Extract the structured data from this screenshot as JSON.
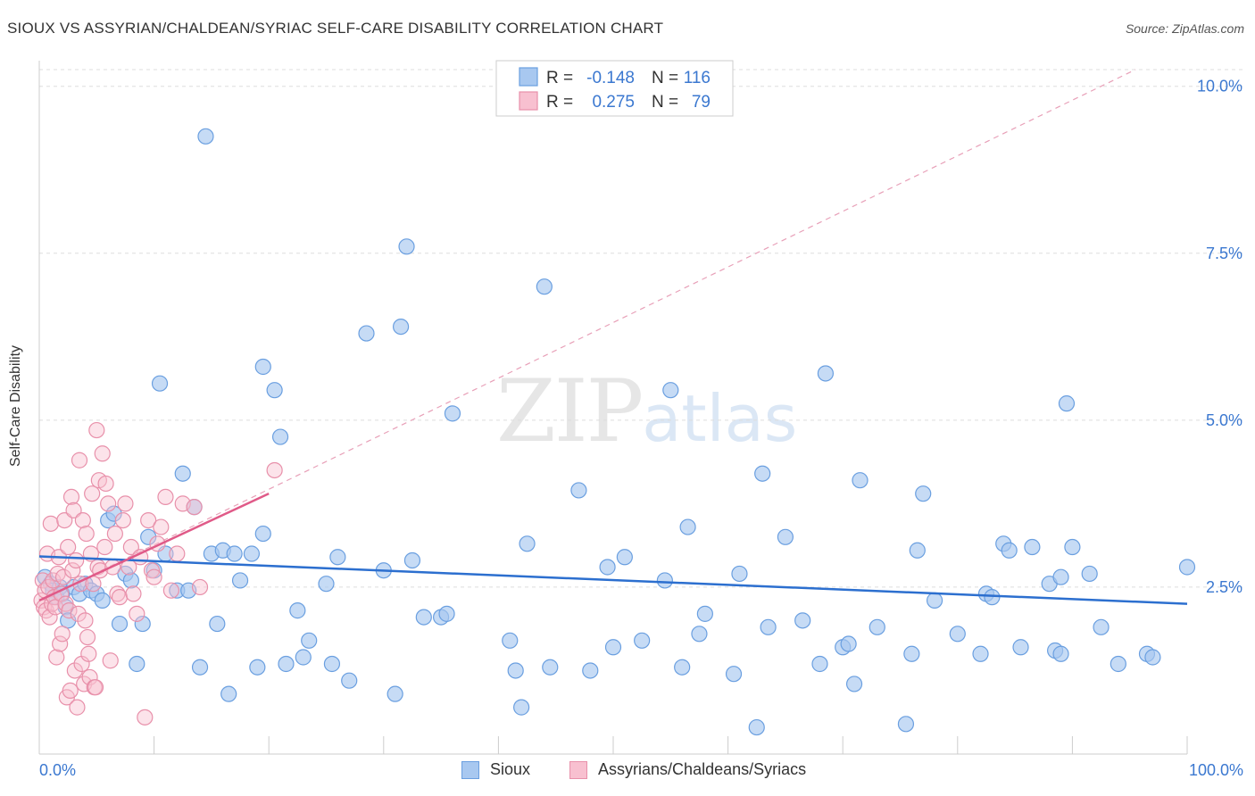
{
  "title": "SIOUX VS ASSYRIAN/CHALDEAN/SYRIAC SELF-CARE DISABILITY CORRELATION CHART",
  "source": "Source: ZipAtlas.com",
  "watermark": {
    "zip": "ZIP",
    "atlas": "atlas"
  },
  "colors": {
    "sioux_fill": "#a8c8f0",
    "sioux_stroke": "#6a9fe0",
    "sioux_line": "#2c6fcf",
    "assyr_fill": "#f8c0d0",
    "assyr_stroke": "#e890aa",
    "assyr_line": "#e05a88",
    "axis_text": "#3b78d0",
    "grid": "#dddddd"
  },
  "legend_top": {
    "rows": [
      {
        "r_label": "R =",
        "r_value": "-0.148",
        "n_label": "N =",
        "n_value": "116"
      },
      {
        "r_label": "R =",
        "r_value": "0.275",
        "n_label": "N =",
        "n_value": "79"
      }
    ]
  },
  "legend_bottom": [
    {
      "label": "Sioux"
    },
    {
      "label": "Assyrians/Chaldeans/Syriacs"
    }
  ],
  "chart_data": {
    "type": "scatter",
    "title": "SIOUX VS ASSYRIAN/CHALDEAN/SYRIAC SELF-CARE DISABILITY CORRELATION CHART",
    "xlabel": "",
    "ylabel": "Self-Care Disability",
    "xlim": [
      0,
      100
    ],
    "ylim": [
      0,
      10.25
    ],
    "x_tick_labels": [
      "0.0%",
      "100.0%"
    ],
    "y_ticks": [
      2.5,
      5.0,
      7.5,
      10.0
    ],
    "y_tick_labels": [
      "2.5%",
      "5.0%",
      "7.5%",
      "10.0%"
    ],
    "grid": true,
    "legend_placement": "top-center",
    "series": [
      {
        "name": "Sioux",
        "R": -0.148,
        "N": 116,
        "trend": {
          "x": [
            0,
            100
          ],
          "y": [
            2.96,
            2.25
          ]
        },
        "points": [
          [
            0.5,
            2.65
          ],
          [
            1.0,
            2.55
          ],
          [
            1.2,
            2.45
          ],
          [
            1.5,
            2.35
          ],
          [
            1.8,
            2.5
          ],
          [
            2.0,
            2.4
          ],
          [
            2.3,
            2.2
          ],
          [
            2.5,
            2.0
          ],
          [
            3.0,
            2.5
          ],
          [
            3.5,
            2.4
          ],
          [
            4.0,
            2.55
          ],
          [
            4.5,
            2.45
          ],
          [
            5.0,
            2.4
          ],
          [
            5.5,
            2.3
          ],
          [
            6.0,
            3.5
          ],
          [
            6.5,
            3.6
          ],
          [
            7.0,
            1.95
          ],
          [
            7.5,
            2.7
          ],
          [
            8.0,
            2.6
          ],
          [
            8.5,
            1.35
          ],
          [
            9.0,
            1.95
          ],
          [
            9.5,
            3.25
          ],
          [
            10.0,
            2.75
          ],
          [
            10.5,
            5.55
          ],
          [
            11.0,
            3.0
          ],
          [
            12.0,
            2.45
          ],
          [
            12.5,
            4.2
          ],
          [
            13.0,
            2.45
          ],
          [
            13.5,
            3.7
          ],
          [
            14.0,
            1.3
          ],
          [
            14.5,
            9.25
          ],
          [
            15.0,
            3.0
          ],
          [
            15.5,
            1.95
          ],
          [
            16.0,
            3.05
          ],
          [
            16.5,
            0.9
          ],
          [
            17.0,
            3.0
          ],
          [
            17.5,
            2.6
          ],
          [
            18.5,
            3.0
          ],
          [
            19.0,
            1.3
          ],
          [
            19.5,
            3.3
          ],
          [
            19.5,
            5.8
          ],
          [
            20.5,
            5.45
          ],
          [
            21.0,
            4.75
          ],
          [
            21.5,
            1.35
          ],
          [
            22.5,
            2.15
          ],
          [
            23.0,
            1.45
          ],
          [
            23.5,
            1.7
          ],
          [
            25.0,
            2.55
          ],
          [
            25.5,
            1.35
          ],
          [
            26.0,
            2.95
          ],
          [
            27.0,
            1.1
          ],
          [
            28.5,
            6.3
          ],
          [
            30.0,
            2.75
          ],
          [
            31.0,
            0.9
          ],
          [
            31.5,
            6.4
          ],
          [
            32.0,
            7.6
          ],
          [
            32.5,
            2.9
          ],
          [
            33.5,
            2.05
          ],
          [
            35.0,
            2.05
          ],
          [
            35.5,
            2.1
          ],
          [
            36.0,
            5.1
          ],
          [
            41.0,
            1.7
          ],
          [
            41.5,
            1.25
          ],
          [
            42.0,
            0.7
          ],
          [
            42.5,
            3.15
          ],
          [
            44.0,
            7.0
          ],
          [
            44.5,
            1.3
          ],
          [
            47.0,
            3.95
          ],
          [
            48.0,
            1.25
          ],
          [
            49.5,
            2.8
          ],
          [
            50.0,
            1.6
          ],
          [
            51.0,
            2.95
          ],
          [
            52.5,
            1.7
          ],
          [
            54.5,
            2.6
          ],
          [
            55.0,
            5.45
          ],
          [
            56.0,
            1.3
          ],
          [
            56.5,
            3.4
          ],
          [
            57.5,
            1.8
          ],
          [
            58.0,
            2.1
          ],
          [
            60.5,
            1.2
          ],
          [
            61.0,
            2.7
          ],
          [
            62.5,
            0.4
          ],
          [
            63.0,
            4.2
          ],
          [
            63.5,
            1.9
          ],
          [
            65.0,
            3.25
          ],
          [
            66.5,
            2.0
          ],
          [
            68.0,
            1.35
          ],
          [
            68.5,
            5.7
          ],
          [
            70.0,
            1.6
          ],
          [
            70.5,
            1.65
          ],
          [
            71.0,
            1.05
          ],
          [
            71.5,
            4.1
          ],
          [
            73.0,
            1.9
          ],
          [
            75.5,
            0.45
          ],
          [
            76.0,
            1.5
          ],
          [
            76.5,
            3.05
          ],
          [
            77.0,
            3.9
          ],
          [
            78.0,
            2.3
          ],
          [
            80.0,
            1.8
          ],
          [
            82.0,
            1.5
          ],
          [
            82.5,
            2.4
          ],
          [
            83.0,
            2.35
          ],
          [
            84.0,
            3.15
          ],
          [
            84.5,
            3.05
          ],
          [
            85.5,
            1.6
          ],
          [
            86.5,
            3.1
          ],
          [
            88.0,
            2.55
          ],
          [
            88.5,
            1.55
          ],
          [
            89.0,
            1.5
          ],
          [
            89.0,
            2.65
          ],
          [
            89.5,
            5.25
          ],
          [
            90.0,
            3.1
          ],
          [
            91.5,
            2.7
          ],
          [
            92.5,
            1.9
          ],
          [
            94.0,
            1.35
          ],
          [
            96.5,
            1.5
          ],
          [
            97.0,
            1.45
          ],
          [
            100.0,
            2.8
          ]
        ]
      },
      {
        "name": "Assyrians/Chaldeans/Syriacs",
        "R": 0.275,
        "N": 79,
        "trend": {
          "x": [
            0,
            20
          ],
          "y": [
            2.3,
            3.9
          ]
        },
        "trend_extended": {
          "x": [
            0,
            95.5
          ],
          "y": [
            2.3,
            10.25
          ]
        },
        "points": [
          [
            0.2,
            2.3
          ],
          [
            0.3,
            2.6
          ],
          [
            0.4,
            2.2
          ],
          [
            0.5,
            2.45
          ],
          [
            0.6,
            2.15
          ],
          [
            0.7,
            3.0
          ],
          [
            0.8,
            2.5
          ],
          [
            0.9,
            2.05
          ],
          [
            1.0,
            3.45
          ],
          [
            1.1,
            2.25
          ],
          [
            1.2,
            2.6
          ],
          [
            1.3,
            2.35
          ],
          [
            1.4,
            2.2
          ],
          [
            1.5,
            1.45
          ],
          [
            1.6,
            2.7
          ],
          [
            1.7,
            2.95
          ],
          [
            1.8,
            1.65
          ],
          [
            1.9,
            2.4
          ],
          [
            2.0,
            1.8
          ],
          [
            2.1,
            2.65
          ],
          [
            2.2,
            3.5
          ],
          [
            2.3,
            2.25
          ],
          [
            2.4,
            0.85
          ],
          [
            2.5,
            3.1
          ],
          [
            2.6,
            2.15
          ],
          [
            2.7,
            0.95
          ],
          [
            2.8,
            3.85
          ],
          [
            2.9,
            2.75
          ],
          [
            3.0,
            3.65
          ],
          [
            3.1,
            1.25
          ],
          [
            3.2,
            2.9
          ],
          [
            3.3,
            0.7
          ],
          [
            3.4,
            2.1
          ],
          [
            3.5,
            4.4
          ],
          [
            3.6,
            2.55
          ],
          [
            3.7,
            1.35
          ],
          [
            3.8,
            3.5
          ],
          [
            3.9,
            1.05
          ],
          [
            4.0,
            2.0
          ],
          [
            4.1,
            3.3
          ],
          [
            4.2,
            1.75
          ],
          [
            4.3,
            1.5
          ],
          [
            4.4,
            1.15
          ],
          [
            4.5,
            3.0
          ],
          [
            4.6,
            3.9
          ],
          [
            4.7,
            2.55
          ],
          [
            4.8,
            1.0
          ],
          [
            4.9,
            1.0
          ],
          [
            5.0,
            4.85
          ],
          [
            5.1,
            2.8
          ],
          [
            5.2,
            4.1
          ],
          [
            5.3,
            2.75
          ],
          [
            5.5,
            4.5
          ],
          [
            5.7,
            3.1
          ],
          [
            5.8,
            4.05
          ],
          [
            6.0,
            3.75
          ],
          [
            6.2,
            1.4
          ],
          [
            6.4,
            2.8
          ],
          [
            6.6,
            3.3
          ],
          [
            6.8,
            2.4
          ],
          [
            7.0,
            2.35
          ],
          [
            7.3,
            3.5
          ],
          [
            7.5,
            3.75
          ],
          [
            7.8,
            2.8
          ],
          [
            8.0,
            3.1
          ],
          [
            8.2,
            2.4
          ],
          [
            8.5,
            2.1
          ],
          [
            8.8,
            2.95
          ],
          [
            9.2,
            0.55
          ],
          [
            9.5,
            3.5
          ],
          [
            9.8,
            2.75
          ],
          [
            10.0,
            2.65
          ],
          [
            10.3,
            3.15
          ],
          [
            10.6,
            3.4
          ],
          [
            11.0,
            3.85
          ],
          [
            11.5,
            2.45
          ],
          [
            12.0,
            3.0
          ],
          [
            12.5,
            3.75
          ],
          [
            13.5,
            3.7
          ],
          [
            14.0,
            2.5
          ],
          [
            20.5,
            4.25
          ]
        ]
      }
    ]
  }
}
